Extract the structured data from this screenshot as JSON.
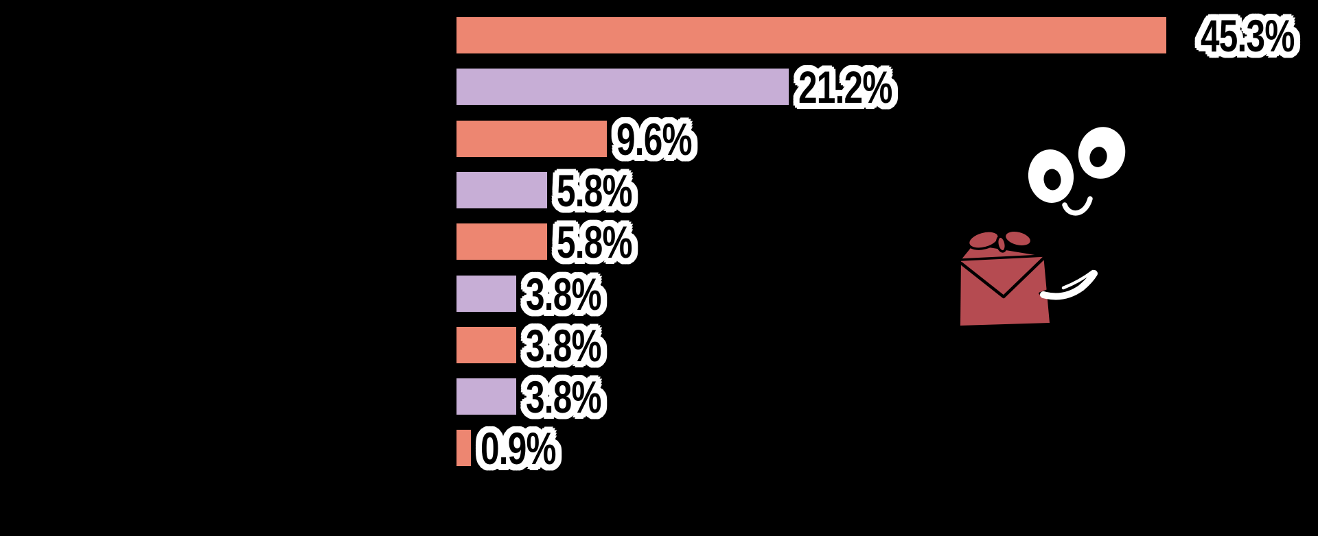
{
  "background_color": "#000000",
  "chart_data": {
    "type": "bar",
    "orientation": "horizontal",
    "values": [
      45.3,
      21.2,
      9.6,
      5.8,
      5.8,
      3.8,
      3.8,
      3.8,
      0.9
    ],
    "value_labels": [
      "45.3%",
      "21.2%",
      "9.6%",
      "5.8%",
      "5.8%",
      "3.8%",
      "3.8%",
      "3.8%",
      "0.9%"
    ],
    "bar_colors": [
      "#ED8671",
      "#C7AED6",
      "#ED8671",
      "#C7AED6",
      "#ED8671",
      "#C7AED6",
      "#ED8671",
      "#C7AED6",
      "#ED8671"
    ],
    "title": "",
    "xlabel": "",
    "ylabel": "",
    "xlim": [
      0,
      55
    ],
    "grid": false,
    "legend": false,
    "label_color": "#000000",
    "label_outline_color": "#FFFFFF"
  },
  "illustration": {
    "name": "character-holding-gift-box",
    "gift_color": "#B54B51",
    "outline_color": "#000000",
    "eye_color": "#FFFFFF",
    "pupil_color": "#000000",
    "smile_color": "#FFFFFF",
    "arm_color": "#FFFFFF"
  }
}
